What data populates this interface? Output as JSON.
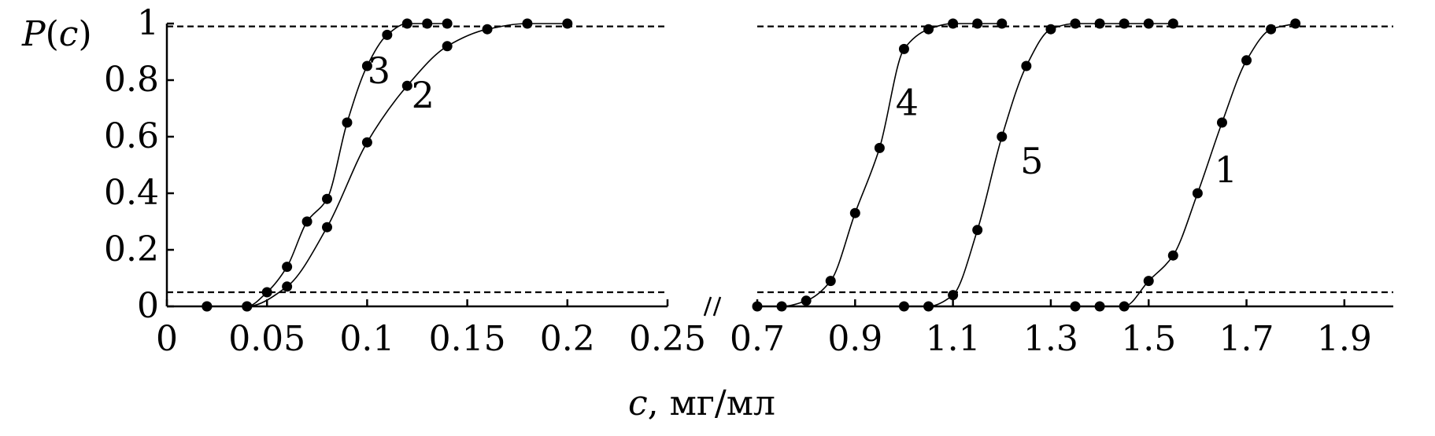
{
  "chart_data": {
    "type": "line",
    "ylabel": {
      "var": "P",
      "arg": "c"
    },
    "xlabel": {
      "var": "c",
      "rest": ", мг/мл"
    },
    "ylim": [
      0,
      1
    ],
    "yticks": [
      "0",
      "0.2",
      "0.4",
      "0.6",
      "0.8",
      "1"
    ],
    "axis_break": "//",
    "panels": [
      {
        "xlim": [
          0,
          0.25
        ],
        "xticks": [
          "0",
          "0.05",
          "0.1",
          "0.15",
          "0.2",
          "0.25"
        ],
        "reference_lines": [
          0.05,
          0.99
        ],
        "series": [
          {
            "name": "3",
            "x": [
              0.02,
              0.04,
              0.05,
              0.06,
              0.07,
              0.08,
              0.09,
              0.1,
              0.11,
              0.12,
              0.13,
              0.14
            ],
            "y": [
              0.0,
              0.0,
              0.05,
              0.14,
              0.3,
              0.38,
              0.65,
              0.85,
              0.96,
              1.0,
              1.0,
              1.0
            ]
          },
          {
            "name": "2",
            "x": [
              0.02,
              0.04,
              0.06,
              0.08,
              0.1,
              0.12,
              0.14,
              0.16,
              0.18,
              0.2
            ],
            "y": [
              0.0,
              0.0,
              0.07,
              0.28,
              0.58,
              0.78,
              0.92,
              0.98,
              1.0,
              1.0
            ]
          }
        ]
      },
      {
        "xlim": [
          0.7,
          2.0
        ],
        "xticks": [
          "0.7",
          "0.9",
          "1.1",
          "1.3",
          "1.5",
          "1.7",
          "1.9"
        ],
        "reference_lines": [
          0.05,
          0.99
        ],
        "series": [
          {
            "name": "4",
            "x": [
              0.7,
              0.75,
              0.8,
              0.85,
              0.9,
              0.95,
              1.0,
              1.05,
              1.1,
              1.15,
              1.2
            ],
            "y": [
              0.0,
              0.0,
              0.02,
              0.09,
              0.33,
              0.56,
              0.91,
              0.98,
              1.0,
              1.0,
              1.0
            ]
          },
          {
            "name": "5",
            "x": [
              1.0,
              1.05,
              1.1,
              1.15,
              1.2,
              1.25,
              1.3,
              1.35,
              1.4,
              1.45,
              1.5,
              1.55
            ],
            "y": [
              0.0,
              0.0,
              0.04,
              0.27,
              0.6,
              0.85,
              0.98,
              1.0,
              1.0,
              1.0,
              1.0,
              1.0
            ]
          },
          {
            "name": "1",
            "x": [
              1.35,
              1.4,
              1.45,
              1.5,
              1.55,
              1.6,
              1.65,
              1.7,
              1.75,
              1.8
            ],
            "y": [
              0.0,
              0.0,
              0.0,
              0.09,
              0.18,
              0.4,
              0.65,
              0.87,
              0.98,
              1.0
            ]
          }
        ]
      }
    ]
  }
}
